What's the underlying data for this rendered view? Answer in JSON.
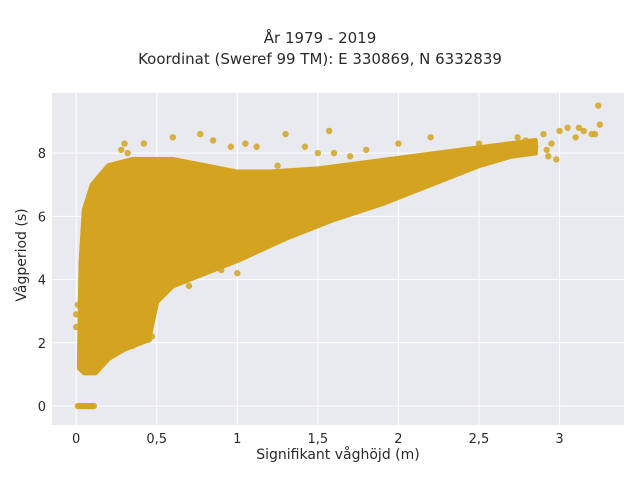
{
  "chart_data": {
    "type": "scatter",
    "title": "År 1979 - 2019",
    "subtitle": "Koordinat (Sweref 99 TM): E 330869, N 6332839",
    "xlabel": "Signifikant våghöjd (m)",
    "ylabel": "Vågperiod (s)",
    "xlim": [
      -0.15,
      3.4
    ],
    "ylim": [
      -0.6,
      9.9
    ],
    "x_ticks": [
      0,
      0.5,
      1,
      1.5,
      2,
      2.5,
      3
    ],
    "x_tick_labels": [
      "0",
      "0,5",
      "1",
      "1,5",
      "2",
      "2,5",
      "3"
    ],
    "y_ticks": [
      0,
      2,
      4,
      6,
      8
    ],
    "y_tick_labels": [
      "0",
      "2",
      "4",
      "6",
      "8"
    ],
    "grid": true,
    "marker_color": "#D4A420",
    "background_color": "#E9E9F0",
    "series": [
      {
        "envelope_upper": [
          [
            0.02,
            1.3
          ],
          [
            0.03,
            4.5
          ],
          [
            0.05,
            6.2
          ],
          [
            0.1,
            7.0
          ],
          [
            0.2,
            7.6
          ],
          [
            0.35,
            7.8
          ],
          [
            0.6,
            7.8
          ],
          [
            0.8,
            7.6
          ],
          [
            1.0,
            7.4
          ],
          [
            1.2,
            7.4
          ],
          [
            1.5,
            7.5
          ],
          [
            1.8,
            7.7
          ],
          [
            2.1,
            7.9
          ],
          [
            2.4,
            8.1
          ],
          [
            2.7,
            8.3
          ],
          [
            2.85,
            8.4
          ]
        ],
        "envelope_lower": [
          [
            0.02,
            1.2
          ],
          [
            0.05,
            1.05
          ],
          [
            0.12,
            1.05
          ],
          [
            0.2,
            1.5
          ],
          [
            0.3,
            1.8
          ],
          [
            0.45,
            2.1
          ],
          [
            0.5,
            3.3
          ],
          [
            0.6,
            3.8
          ],
          [
            0.8,
            4.2
          ],
          [
            1.0,
            4.6
          ],
          [
            1.3,
            5.3
          ],
          [
            1.6,
            5.9
          ],
          [
            1.9,
            6.4
          ],
          [
            2.2,
            7.0
          ],
          [
            2.5,
            7.6
          ],
          [
            2.7,
            7.9
          ],
          [
            2.85,
            8.0
          ]
        ],
        "points": [
          [
            0.01,
            0.0
          ],
          [
            0.02,
            0.0
          ],
          [
            0.03,
            0.0
          ],
          [
            0.04,
            0.0
          ],
          [
            0.05,
            0.0
          ],
          [
            0.06,
            0.0
          ],
          [
            0.07,
            0.0
          ],
          [
            0.08,
            0.0
          ],
          [
            0.09,
            0.0
          ],
          [
            0.1,
            0.0
          ],
          [
            0.11,
            0.0
          ],
          [
            0.0,
            2.5
          ],
          [
            0.0,
            2.9
          ],
          [
            0.01,
            3.2
          ],
          [
            0.3,
            8.3
          ],
          [
            0.28,
            8.1
          ],
          [
            0.32,
            8.0
          ],
          [
            0.42,
            8.3
          ],
          [
            0.6,
            8.5
          ],
          [
            0.77,
            8.6
          ],
          [
            0.85,
            8.4
          ],
          [
            0.96,
            8.2
          ],
          [
            1.05,
            8.3
          ],
          [
            1.12,
            8.2
          ],
          [
            1.25,
            7.6
          ],
          [
            1.3,
            8.6
          ],
          [
            1.42,
            8.2
          ],
          [
            1.5,
            8.0
          ],
          [
            1.57,
            8.7
          ],
          [
            1.6,
            8.0
          ],
          [
            1.7,
            7.9
          ],
          [
            1.8,
            8.1
          ],
          [
            2.0,
            8.3
          ],
          [
            2.2,
            8.5
          ],
          [
            2.5,
            8.3
          ],
          [
            2.6,
            8.2
          ],
          [
            2.74,
            8.5
          ],
          [
            2.79,
            8.4
          ],
          [
            2.85,
            8.2
          ],
          [
            2.9,
            8.6
          ],
          [
            2.92,
            8.1
          ],
          [
            2.98,
            7.8
          ],
          [
            2.95,
            8.3
          ],
          [
            2.93,
            7.9
          ],
          [
            3.0,
            8.7
          ],
          [
            3.05,
            8.8
          ],
          [
            3.12,
            8.8
          ],
          [
            3.15,
            8.7
          ],
          [
            3.1,
            8.5
          ],
          [
            3.2,
            8.6
          ],
          [
            3.24,
            9.5
          ],
          [
            3.25,
            8.9
          ],
          [
            3.22,
            8.6
          ],
          [
            0.12,
            3.7
          ],
          [
            0.4,
            2.2
          ],
          [
            0.45,
            2.1
          ],
          [
            0.47,
            2.2
          ],
          [
            0.35,
            1.9
          ],
          [
            1.0,
            4.2
          ],
          [
            0.9,
            4.3
          ],
          [
            0.7,
            3.8
          ]
        ]
      }
    ]
  }
}
